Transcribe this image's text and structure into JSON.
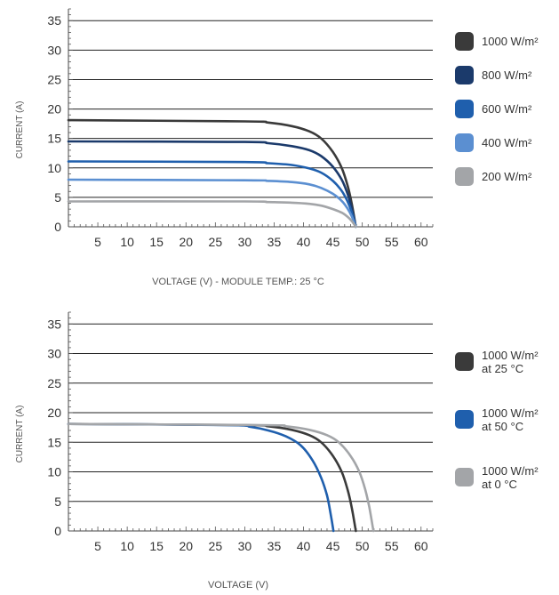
{
  "chart_data": [
    {
      "type": "line",
      "title": "",
      "xlabel": "VOLTAGE (V) - MODULE TEMP.: 25 °C",
      "ylabel": "CURRENT (A)",
      "xlim": [
        0,
        62
      ],
      "ylim": [
        0,
        37
      ],
      "xticks": [
        5,
        10,
        15,
        20,
        25,
        30,
        35,
        40,
        45,
        50,
        55,
        60
      ],
      "yticks": [
        0,
        5,
        10,
        15,
        20,
        25,
        30,
        35
      ],
      "grid": "horizontal",
      "legend_position": "right",
      "series": [
        {
          "name": "1000 W/m²",
          "color": "#3a3a3a",
          "isc": 18.1,
          "voc": 48.9,
          "x": [
            0,
            30,
            34,
            38,
            41,
            43,
            45,
            46.5,
            47.5,
            48.2,
            48.9
          ],
          "y": [
            18.1,
            17.9,
            17.7,
            17.1,
            16.2,
            15.0,
            12.7,
            10.0,
            7.0,
            4.0,
            0
          ]
        },
        {
          "name": "800 W/m²",
          "color": "#1b3a6b",
          "isc": 14.5,
          "voc": 48.9,
          "x": [
            0,
            30,
            34,
            38,
            41,
            43,
            45,
            46.5,
            47.5,
            48.2,
            48.9
          ],
          "y": [
            14.5,
            14.4,
            14.2,
            13.7,
            13.0,
            12.0,
            10.2,
            8.0,
            5.6,
            3.2,
            0
          ]
        },
        {
          "name": "600 W/m²",
          "color": "#1f5fad",
          "isc": 11.1,
          "voc": 48.9,
          "x": [
            0,
            30,
            34,
            38,
            41,
            43,
            45,
            46.5,
            47.5,
            48.2,
            48.9
          ],
          "y": [
            11.1,
            11.0,
            10.8,
            10.5,
            9.9,
            9.2,
            7.8,
            6.1,
            4.3,
            2.5,
            0
          ]
        },
        {
          "name": "400 W/m²",
          "color": "#5b8fd1",
          "isc": 8.0,
          "voc": 48.9,
          "x": [
            0,
            30,
            34,
            38,
            41,
            43,
            45,
            46.5,
            47.5,
            48.2,
            48.9
          ],
          "y": [
            8.0,
            7.9,
            7.8,
            7.6,
            7.2,
            6.6,
            5.6,
            4.4,
            3.1,
            1.8,
            0
          ]
        },
        {
          "name": "200 W/m²",
          "color": "#a3a5a8",
          "isc": 4.3,
          "voc": 48.9,
          "x": [
            0,
            30,
            34,
            38,
            41,
            43,
            45,
            46.5,
            47.5,
            48.2,
            48.9
          ],
          "y": [
            4.3,
            4.3,
            4.2,
            4.1,
            3.9,
            3.6,
            3.0,
            2.4,
            1.7,
            1.0,
            0
          ]
        }
      ]
    },
    {
      "type": "line",
      "title": "",
      "xlabel": "VOLTAGE (V)",
      "ylabel": "CURRENT (A)",
      "xlim": [
        0,
        62
      ],
      "ylim": [
        0,
        37
      ],
      "xticks": [
        5,
        10,
        15,
        20,
        25,
        30,
        35,
        40,
        45,
        50,
        55,
        60
      ],
      "yticks": [
        0,
        5,
        10,
        15,
        20,
        25,
        30,
        35
      ],
      "grid": "horizontal",
      "legend_position": "right",
      "series": [
        {
          "name": "1000 W/m² at 25 °C",
          "label_line1": "1000 W/m²",
          "label_line2": "at 25 °C",
          "color": "#3a3a3a",
          "x": [
            0,
            30,
            34,
            38,
            41,
            43,
            45,
            46.5,
            47.5,
            48.2,
            48.9
          ],
          "y": [
            18.1,
            17.9,
            17.7,
            17.1,
            16.2,
            15.0,
            12.7,
            10.0,
            7.0,
            4.0,
            0
          ]
        },
        {
          "name": "1000 W/m² at 50 °C",
          "label_line1": "1000 W/m²",
          "label_line2": "at 50 °C",
          "color": "#1f5fad",
          "x": [
            0,
            27,
            31,
            34,
            37,
            39.5,
            41.5,
            43,
            44,
            44.6,
            45.1
          ],
          "y": [
            18.1,
            17.9,
            17.6,
            17.0,
            16.0,
            14.5,
            12.0,
            9.0,
            6.0,
            3.0,
            0
          ]
        },
        {
          "name": "1000 W/m² at 0 °C",
          "label_line1": "1000 W/m²",
          "label_line2": "at 0 °C",
          "color": "#a3a5a8",
          "x": [
            0,
            33,
            37,
            41,
            44,
            46,
            48,
            49.5,
            50.5,
            51.2,
            51.9
          ],
          "y": [
            18.1,
            17.9,
            17.7,
            17.1,
            16.2,
            15.0,
            12.7,
            10.0,
            7.0,
            4.0,
            0
          ]
        }
      ]
    }
  ]
}
